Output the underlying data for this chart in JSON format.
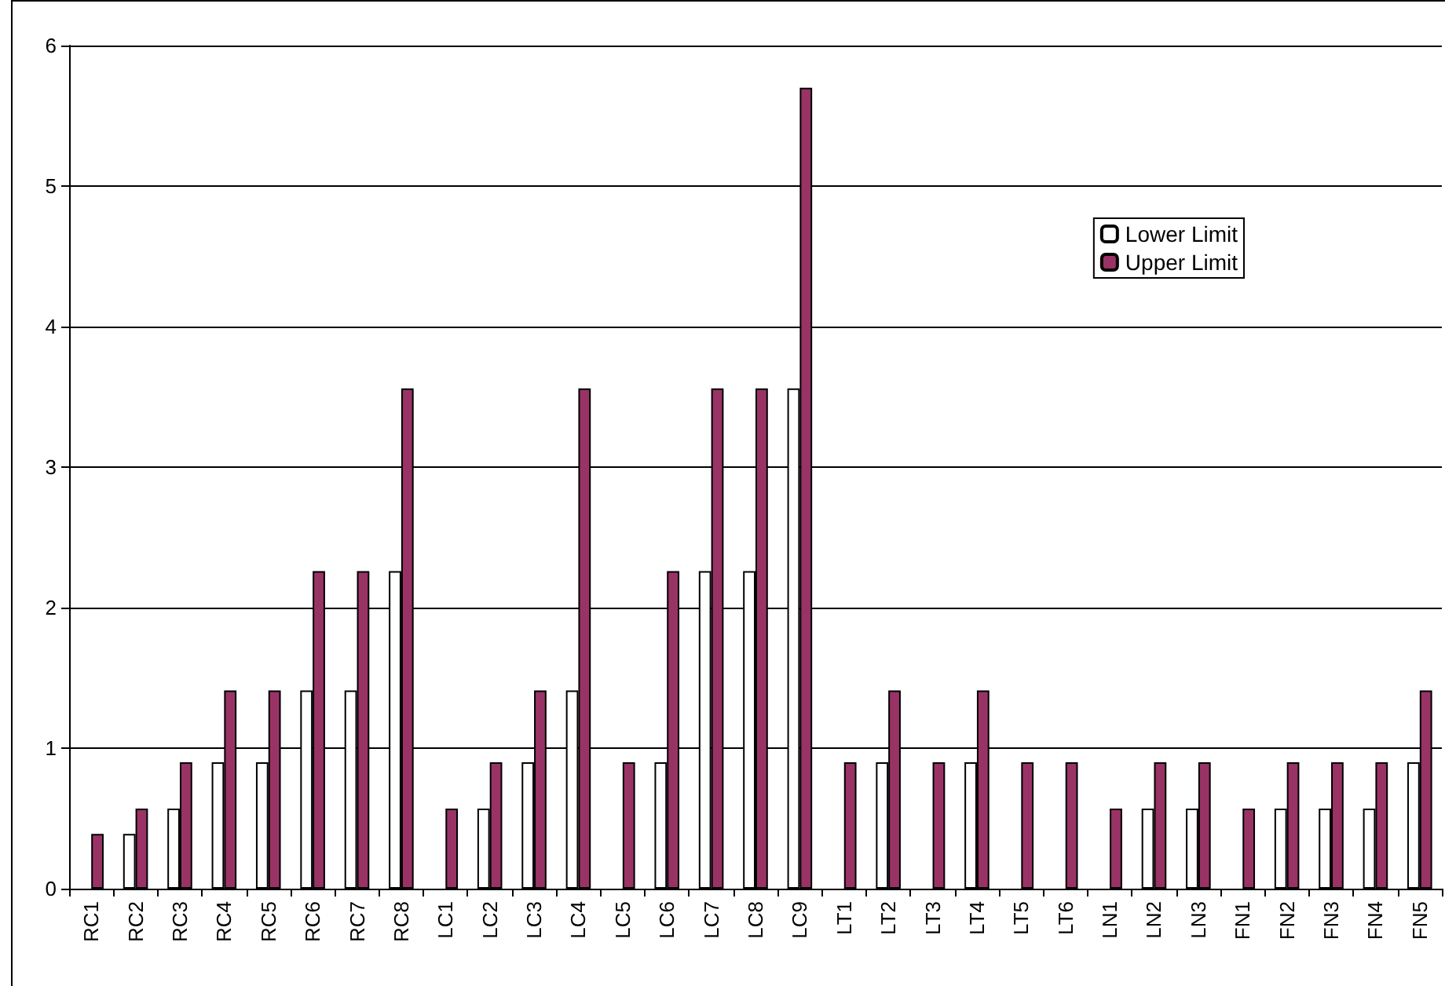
{
  "chart_data": {
    "type": "bar",
    "categories": [
      "RC1",
      "RC2",
      "RC3",
      "RC4",
      "RC5",
      "RC6",
      "RC7",
      "RC8",
      "LC1",
      "LC2",
      "LC3",
      "LC4",
      "LC5",
      "LC6",
      "LC7",
      "LC8",
      "LC9",
      "LT1",
      "LT2",
      "LT3",
      "LT4",
      "LT5",
      "LT6",
      "LN1",
      "LN2",
      "LN3",
      "FN1",
      "FN2",
      "FN3",
      "FN4",
      "FN5"
    ],
    "series": [
      {
        "name": "Lower Limit",
        "color": "#ffffff",
        "values": [
          null,
          0.39,
          0.57,
          0.9,
          0.9,
          1.41,
          1.41,
          2.26,
          null,
          0.57,
          0.9,
          1.41,
          null,
          0.9,
          2.26,
          2.26,
          3.56,
          null,
          0.9,
          null,
          0.9,
          null,
          null,
          null,
          0.57,
          0.57,
          null,
          0.57,
          0.57,
          0.57,
          0.9
        ]
      },
      {
        "name": "Upper Limit",
        "color": "#993366",
        "values": [
          0.39,
          0.57,
          0.9,
          1.41,
          1.41,
          2.26,
          2.26,
          3.56,
          0.57,
          0.9,
          1.41,
          3.56,
          0.9,
          2.26,
          3.56,
          3.56,
          5.7,
          0.9,
          1.41,
          0.9,
          1.41,
          0.9,
          0.9,
          0.57,
          0.9,
          0.9,
          0.57,
          0.9,
          0.9,
          0.9,
          1.41
        ]
      }
    ],
    "ylim": [
      0,
      6
    ],
    "yticks": [
      0,
      1,
      2,
      3,
      4,
      5,
      6
    ],
    "grid": "y",
    "legend": "top right"
  }
}
